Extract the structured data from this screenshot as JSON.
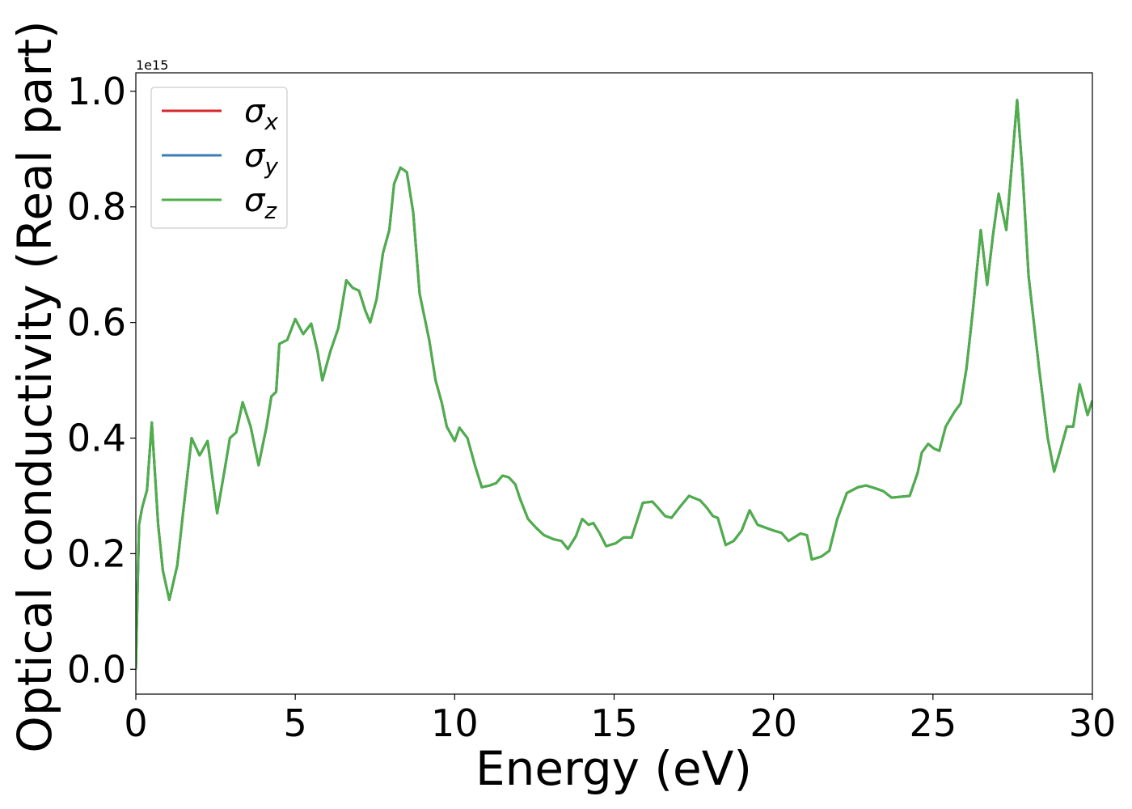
{
  "chart_data": {
    "type": "line",
    "xlabel": "Energy (eV)",
    "ylabel": "Optical conductivity (Real part)",
    "y_offset_label": "1e15",
    "xlim": [
      0,
      30
    ],
    "ylim": [
      -0.043,
      1.032
    ],
    "xticks": [
      0,
      5,
      10,
      15,
      20,
      25,
      30
    ],
    "yticks": [
      {
        "value": 0,
        "label": "0.0"
      },
      0.2,
      0.4,
      0.6,
      0.8,
      {
        "value": 1,
        "label": "1.0"
      }
    ],
    "grid": false,
    "legend": "upper left",
    "x": [
      0,
      0.1,
      0.2,
      0.35,
      0.5,
      0.7,
      0.85,
      1.05,
      1.3,
      1.5,
      1.75,
      2.0,
      2.25,
      2.55,
      2.8,
      2.95,
      3.15,
      3.35,
      3.6,
      3.85,
      4.1,
      4.25,
      4.4,
      4.5,
      4.75,
      5.0,
      5.25,
      5.5,
      5.7,
      5.85,
      6.1,
      6.35,
      6.6,
      6.8,
      7.0,
      7.2,
      7.35,
      7.55,
      7.75,
      7.95,
      8.1,
      8.3,
      8.5,
      8.7,
      8.9,
      9.2,
      9.4,
      9.6,
      9.75,
      10.0,
      10.15,
      10.4,
      10.65,
      10.85,
      11.1,
      11.3,
      11.5,
      11.7,
      11.9,
      12.05,
      12.3,
      12.55,
      12.8,
      13.1,
      13.35,
      13.55,
      13.8,
      14.0,
      14.2,
      14.35,
      14.55,
      14.75,
      15.05,
      15.3,
      15.55,
      15.9,
      16.2,
      16.4,
      16.6,
      16.8,
      17.05,
      17.35,
      17.7,
      17.9,
      18.1,
      18.25,
      18.5,
      18.75,
      19.0,
      19.25,
      19.5,
      19.7,
      20.0,
      20.25,
      20.47,
      20.85,
      21.05,
      21.2,
      21.5,
      21.75,
      22.0,
      22.3,
      22.65,
      22.9,
      23.2,
      23.45,
      23.7,
      23.9,
      24.27,
      24.52,
      24.65,
      24.85,
      25.03,
      25.2,
      25.4,
      25.67,
      25.87,
      26.05,
      26.25,
      26.5,
      26.7,
      26.88,
      27.06,
      27.3,
      27.44,
      27.64,
      27.82,
      28.0,
      28.33,
      28.6,
      28.8,
      29.0,
      29.2,
      29.4,
      29.6,
      29.85,
      30.0
    ],
    "series": [
      {
        "name": "σx",
        "color": "#d62728",
        "values": [
          0,
          0.25,
          0.28,
          0.31,
          0.427,
          0.25,
          0.17,
          0.12,
          0.18,
          0.28,
          0.4,
          0.37,
          0.395,
          0.27,
          0.35,
          0.4,
          0.41,
          0.462,
          0.42,
          0.353,
          0.42,
          0.472,
          0.48,
          0.563,
          0.57,
          0.606,
          0.58,
          0.598,
          0.55,
          0.5,
          0.55,
          0.59,
          0.673,
          0.66,
          0.655,
          0.62,
          0.6,
          0.64,
          0.72,
          0.76,
          0.84,
          0.868,
          0.86,
          0.79,
          0.65,
          0.57,
          0.5,
          0.46,
          0.42,
          0.395,
          0.418,
          0.4,
          0.35,
          0.315,
          0.318,
          0.322,
          0.335,
          0.332,
          0.32,
          0.295,
          0.26,
          0.245,
          0.232,
          0.225,
          0.222,
          0.208,
          0.23,
          0.26,
          0.25,
          0.253,
          0.235,
          0.213,
          0.218,
          0.228,
          0.228,
          0.288,
          0.29,
          0.278,
          0.265,
          0.262,
          0.28,
          0.3,
          0.292,
          0.28,
          0.265,
          0.262,
          0.215,
          0.222,
          0.24,
          0.275,
          0.25,
          0.246,
          0.24,
          0.236,
          0.222,
          0.235,
          0.232,
          0.19,
          0.195,
          0.205,
          0.26,
          0.305,
          0.315,
          0.318,
          0.313,
          0.308,
          0.297,
          0.298,
          0.3,
          0.34,
          0.375,
          0.39,
          0.382,
          0.378,
          0.42,
          0.445,
          0.46,
          0.52,
          0.62,
          0.76,
          0.665,
          0.75,
          0.823,
          0.76,
          0.85,
          0.985,
          0.85,
          0.68,
          0.52,
          0.4,
          0.342,
          0.38,
          0.42,
          0.42,
          0.493,
          0.44,
          0.465
        ]
      },
      {
        "name": "σy",
        "color": "#3a7db4",
        "values": [
          0,
          0.25,
          0.28,
          0.31,
          0.427,
          0.25,
          0.17,
          0.12,
          0.18,
          0.28,
          0.4,
          0.37,
          0.395,
          0.27,
          0.35,
          0.4,
          0.41,
          0.462,
          0.42,
          0.353,
          0.42,
          0.472,
          0.48,
          0.563,
          0.57,
          0.606,
          0.58,
          0.598,
          0.55,
          0.5,
          0.55,
          0.59,
          0.673,
          0.66,
          0.655,
          0.62,
          0.6,
          0.64,
          0.72,
          0.76,
          0.84,
          0.868,
          0.86,
          0.79,
          0.65,
          0.57,
          0.5,
          0.46,
          0.42,
          0.395,
          0.418,
          0.4,
          0.35,
          0.315,
          0.318,
          0.322,
          0.335,
          0.332,
          0.32,
          0.295,
          0.26,
          0.245,
          0.232,
          0.225,
          0.222,
          0.208,
          0.23,
          0.26,
          0.25,
          0.253,
          0.235,
          0.213,
          0.218,
          0.228,
          0.228,
          0.288,
          0.29,
          0.278,
          0.265,
          0.262,
          0.28,
          0.3,
          0.292,
          0.28,
          0.265,
          0.262,
          0.215,
          0.222,
          0.24,
          0.275,
          0.25,
          0.246,
          0.24,
          0.236,
          0.222,
          0.235,
          0.232,
          0.19,
          0.195,
          0.205,
          0.26,
          0.305,
          0.315,
          0.318,
          0.313,
          0.308,
          0.297,
          0.298,
          0.3,
          0.34,
          0.375,
          0.39,
          0.382,
          0.378,
          0.42,
          0.445,
          0.46,
          0.52,
          0.62,
          0.76,
          0.665,
          0.75,
          0.823,
          0.76,
          0.85,
          0.985,
          0.85,
          0.68,
          0.52,
          0.4,
          0.342,
          0.38,
          0.42,
          0.42,
          0.493,
          0.44,
          0.465
        ]
      },
      {
        "name": "σz",
        "color": "#4daf4a",
        "values": [
          0,
          0.25,
          0.28,
          0.31,
          0.427,
          0.25,
          0.17,
          0.12,
          0.18,
          0.28,
          0.4,
          0.37,
          0.395,
          0.27,
          0.35,
          0.4,
          0.41,
          0.462,
          0.42,
          0.353,
          0.42,
          0.472,
          0.48,
          0.563,
          0.57,
          0.606,
          0.58,
          0.598,
          0.55,
          0.5,
          0.55,
          0.59,
          0.673,
          0.66,
          0.655,
          0.62,
          0.6,
          0.64,
          0.72,
          0.76,
          0.84,
          0.868,
          0.86,
          0.79,
          0.65,
          0.57,
          0.5,
          0.46,
          0.42,
          0.395,
          0.418,
          0.4,
          0.35,
          0.315,
          0.318,
          0.322,
          0.335,
          0.332,
          0.32,
          0.295,
          0.26,
          0.245,
          0.232,
          0.225,
          0.222,
          0.208,
          0.23,
          0.26,
          0.25,
          0.253,
          0.235,
          0.213,
          0.218,
          0.228,
          0.228,
          0.288,
          0.29,
          0.278,
          0.265,
          0.262,
          0.28,
          0.3,
          0.292,
          0.28,
          0.265,
          0.262,
          0.215,
          0.222,
          0.24,
          0.275,
          0.25,
          0.246,
          0.24,
          0.236,
          0.222,
          0.235,
          0.232,
          0.19,
          0.195,
          0.205,
          0.26,
          0.305,
          0.315,
          0.318,
          0.313,
          0.308,
          0.297,
          0.298,
          0.3,
          0.34,
          0.375,
          0.39,
          0.382,
          0.378,
          0.42,
          0.445,
          0.46,
          0.52,
          0.62,
          0.76,
          0.665,
          0.75,
          0.823,
          0.76,
          0.85,
          0.985,
          0.85,
          0.68,
          0.52,
          0.4,
          0.342,
          0.38,
          0.42,
          0.42,
          0.493,
          0.44,
          0.465
        ]
      }
    ]
  }
}
